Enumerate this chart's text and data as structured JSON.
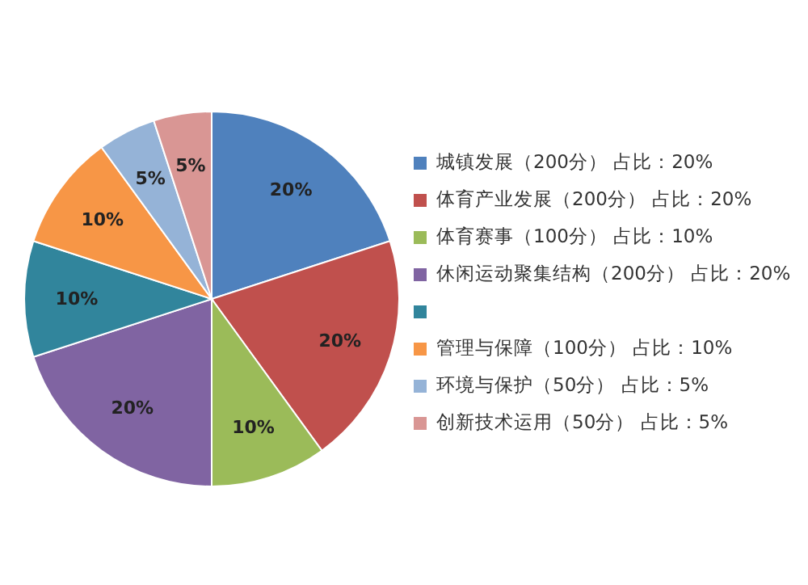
{
  "chart_data": {
    "type": "pie",
    "categories": [
      "城镇发展（200分）  占比：20%",
      "体育产业发展（200分）  占比：20%",
      "体育赛事（100分）  占比：10%",
      "休闲运动聚集结构（200分）  占比：20%",
      null,
      "管理与保障（100分）  占比：10%",
      "环境与保护（50分）  占比：5%",
      "创新技术运用（50分）  占比：5%"
    ],
    "values": [
      20,
      20,
      10,
      20,
      10,
      10,
      5,
      5
    ],
    "value_labels": [
      "20%",
      "20%",
      "10%",
      "20%",
      "10%",
      "10%",
      "5%",
      "5%"
    ],
    "colors": [
      "#4f81bd",
      "#c0504d",
      "#9bbb59",
      "#8064a2",
      "#31859c",
      "#f79646",
      "#95b3d7",
      "#d99694"
    ],
    "legend": "right"
  }
}
